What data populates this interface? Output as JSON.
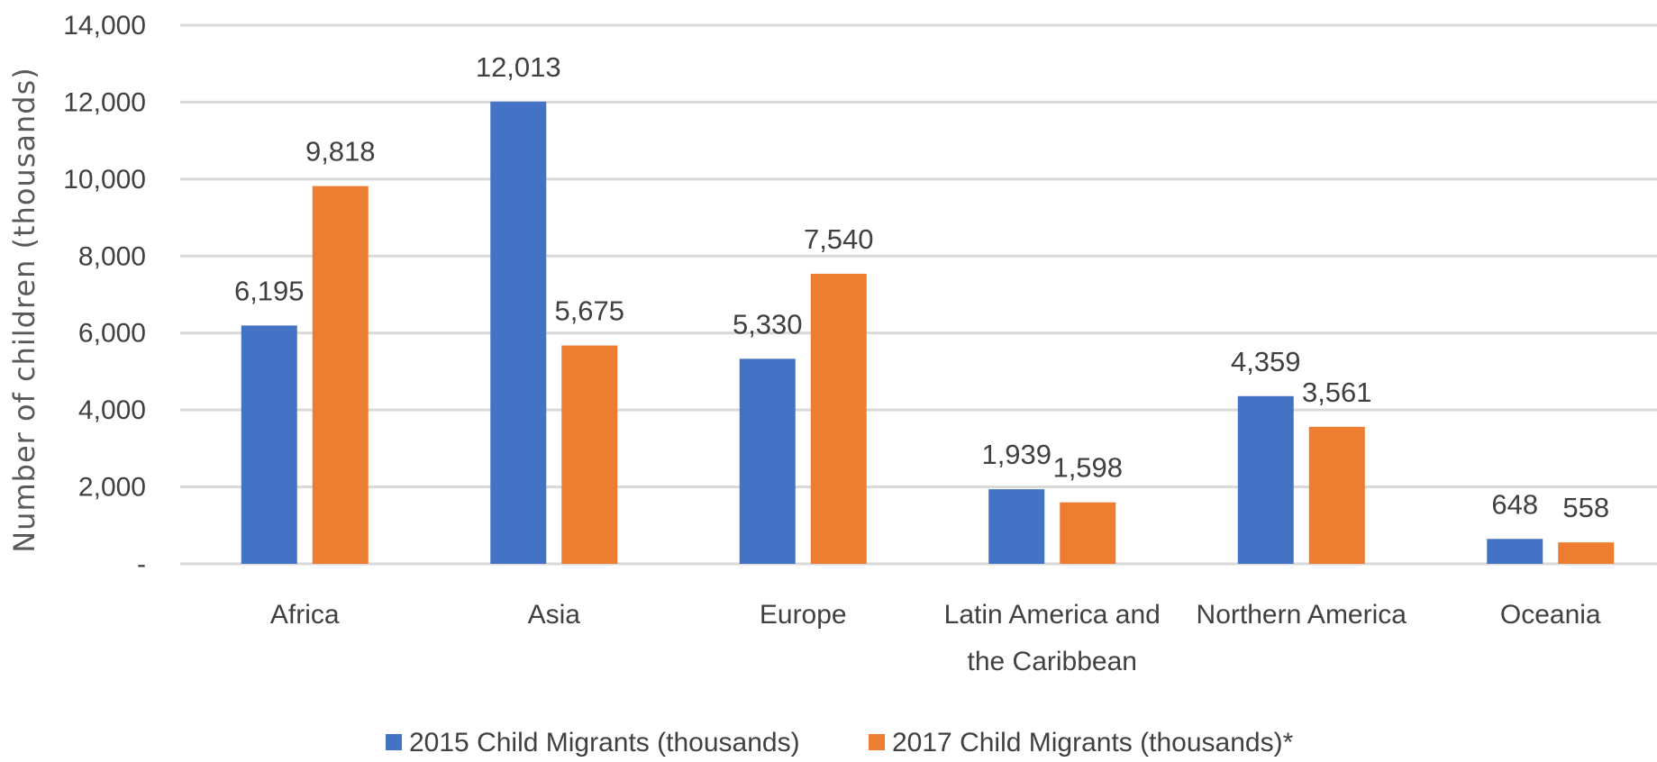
{
  "chart_data": {
    "type": "bar",
    "title": "",
    "xlabel": "",
    "ylabel": "Number of children (thousands)",
    "ylim": [
      0,
      14000
    ],
    "yticks": [
      0,
      2000,
      4000,
      6000,
      8000,
      10000,
      12000,
      14000
    ],
    "ytick_labels": [
      "-",
      "2,000",
      "4,000",
      "6,000",
      "8,000",
      "10,000",
      "12,000",
      "14,000"
    ],
    "grid": true,
    "legend_position": "bottom",
    "categories": [
      [
        "Africa"
      ],
      [
        "Asia"
      ],
      [
        "Europe"
      ],
      [
        "Latin America and",
        "the Caribbean"
      ],
      [
        "Northern America"
      ],
      [
        "Oceania"
      ]
    ],
    "series": [
      {
        "name": "2015 Child Migrants (thousands)",
        "color": "#4472C4",
        "values": [
          6195,
          12013,
          5330,
          1939,
          4359,
          648
        ],
        "labels": [
          "6,195",
          "12,013",
          "5,330",
          "1,939",
          "4,359",
          "648"
        ]
      },
      {
        "name": "2017 Child Migrants (thousands)*",
        "color": "#ED7D31",
        "values": [
          9818,
          5675,
          7540,
          1598,
          3561,
          558
        ],
        "labels": [
          "9,818",
          "5,675",
          "7,540",
          "1,598",
          "3,561",
          "558"
        ]
      }
    ],
    "gridline_color": "#D9D9D9"
  }
}
